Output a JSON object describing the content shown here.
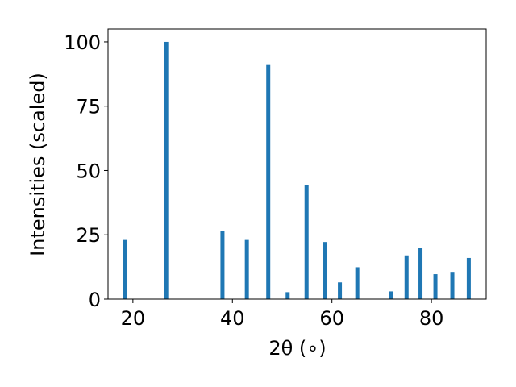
{
  "chart_data": {
    "type": "bar",
    "title": "",
    "xlabel": "2θ (∘)",
    "ylabel": "Intensities (scaled)",
    "xlim": [
      15,
      91
    ],
    "ylim": [
      0,
      105
    ],
    "xticks": [
      20,
      40,
      60,
      80
    ],
    "yticks": [
      0,
      25,
      50,
      75,
      100
    ],
    "grid": false,
    "legend": "none",
    "bar_color": "#1f77b4",
    "x": [
      18.4,
      26.7,
      38.0,
      42.9,
      47.2,
      51.1,
      54.9,
      58.6,
      61.6,
      65.1,
      71.8,
      75.0,
      77.8,
      80.8,
      84.2,
      87.5
    ],
    "values": [
      23,
      100,
      26.5,
      23,
      91,
      2.7,
      44.5,
      22.2,
      6.5,
      12.4,
      3,
      17,
      19.8,
      9.7,
      10.6,
      16
    ]
  }
}
